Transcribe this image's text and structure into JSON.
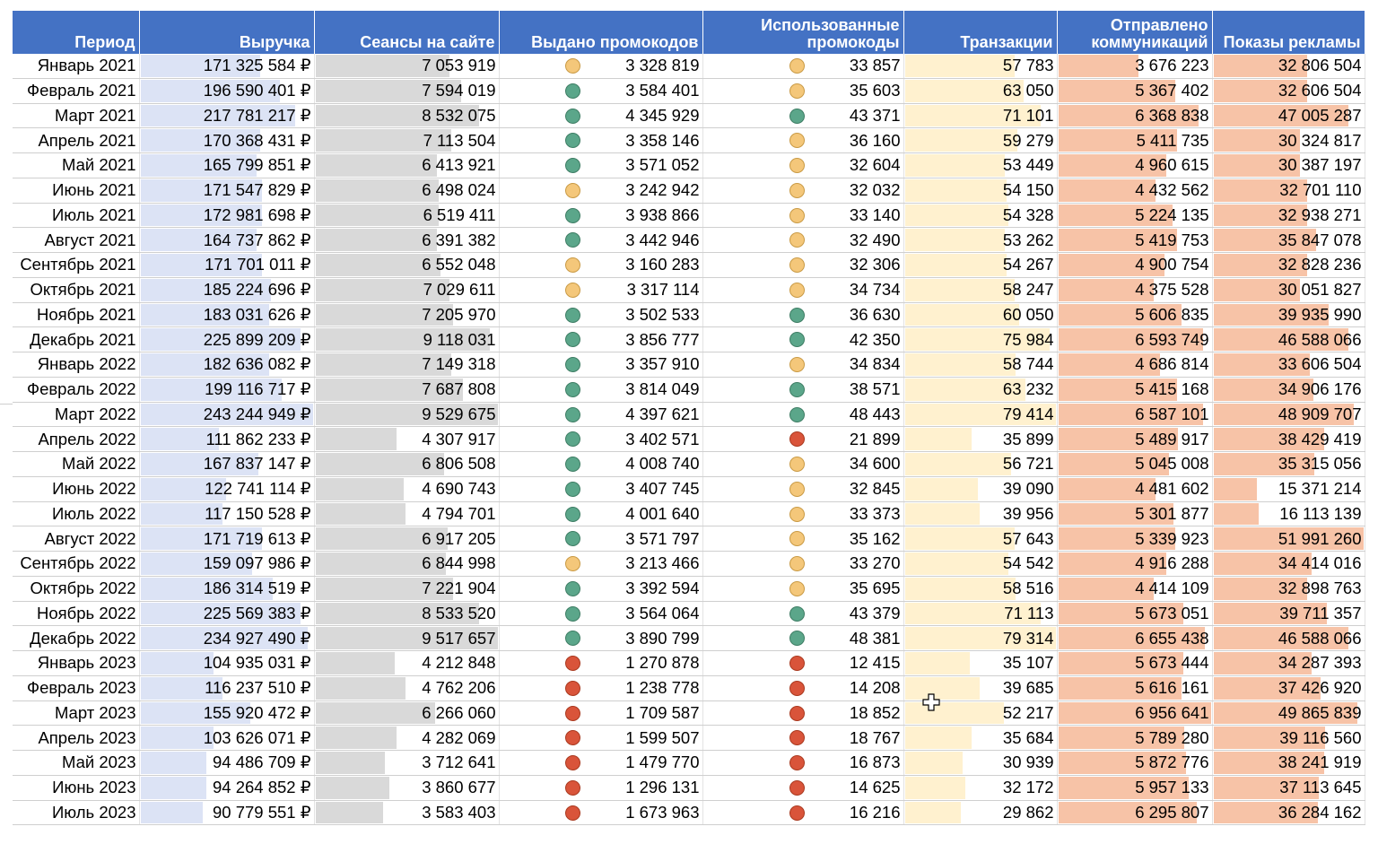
{
  "headers": [
    "Период",
    "Выручка",
    "Сеансы на сайте",
    "Выдано промокодов",
    "Использованные\nпромокоды",
    "Транзакции",
    "Отправлено\nкоммуникаций",
    "Показы рекламы"
  ],
  "colors": {
    "header_bg": "#4472C4",
    "revenue_bar": "#DCE3F5",
    "sessions_bar": "#D9D9D9",
    "transactions_bar": "#FFF1CF",
    "comms_bar": "#F7C3A7",
    "ads_bar": "#F7C3A7",
    "icon_yellow": "#F4C77A",
    "icon_green": "#5BA68A",
    "icon_red": "#D9543A"
  },
  "icon_legend": {
    "y": "yellow-circle-icon",
    "g": "green-circle-icon",
    "r": "red-circle-icon"
  },
  "rows": [
    {
      "period": "Январь 2021",
      "revenue": "171 325 584 ₽",
      "sessions": "7 053 919",
      "promo_icon": "y",
      "promos": "3 328 819",
      "used_icon": "y",
      "used": "33 857",
      "transactions": "57 783",
      "comms": "3 676 223",
      "ads": "32 806 504",
      "rev_fill": 0.7,
      "ses_fill": 0.74,
      "tr_fill": 0.73,
      "com_fill": 0.53,
      "ads_fill": 0.63
    },
    {
      "period": "Февраль 2021",
      "revenue": "196 590 401 ₽",
      "sessions": "7 594 019",
      "promo_icon": "g",
      "promos": "3 584 401",
      "used_icon": "y",
      "used": "35 603",
      "transactions": "63 050",
      "comms": "5 367 402",
      "ads": "32 606 504",
      "rev_fill": 0.81,
      "ses_fill": 0.8,
      "tr_fill": 0.79,
      "com_fill": 0.77,
      "ads_fill": 0.63
    },
    {
      "period": "Март 2021",
      "revenue": "217 781 217 ₽",
      "sessions": "8 532 075",
      "promo_icon": "g",
      "promos": "4 345 929",
      "used_icon": "g",
      "used": "43 371",
      "transactions": "71 101",
      "comms": "6 368 838",
      "ads": "47 005 287",
      "rev_fill": 0.9,
      "ses_fill": 0.9,
      "tr_fill": 0.9,
      "com_fill": 0.92,
      "ads_fill": 0.9
    },
    {
      "period": "Апрель 2021",
      "revenue": "170 368 431 ₽",
      "sessions": "7 113 504",
      "promo_icon": "g",
      "promos": "3 358 146",
      "used_icon": "y",
      "used": "36 160",
      "transactions": "59 279",
      "comms": "5 411 735",
      "ads": "30 324 817",
      "rev_fill": 0.7,
      "ses_fill": 0.75,
      "tr_fill": 0.75,
      "com_fill": 0.78,
      "ads_fill": 0.58
    },
    {
      "period": "Май 2021",
      "revenue": "165 799 851 ₽",
      "sessions": "6 413 921",
      "promo_icon": "g",
      "promos": "3 571 052",
      "used_icon": "y",
      "used": "32 604",
      "transactions": "53 449",
      "comms": "4 960 615",
      "ads": "30 387 197",
      "rev_fill": 0.68,
      "ses_fill": 0.67,
      "tr_fill": 0.67,
      "com_fill": 0.71,
      "ads_fill": 0.58
    },
    {
      "period": "Июнь 2021",
      "revenue": "171 547 829 ₽",
      "sessions": "6 498 024",
      "promo_icon": "y",
      "promos": "3 242 942",
      "used_icon": "y",
      "used": "32 032",
      "transactions": "54 150",
      "comms": "4 432 562",
      "ads": "32 701 110",
      "rev_fill": 0.71,
      "ses_fill": 0.68,
      "tr_fill": 0.68,
      "com_fill": 0.64,
      "ads_fill": 0.63
    },
    {
      "period": "Июль 2021",
      "revenue": "172 981 698 ₽",
      "sessions": "6 519 411",
      "promo_icon": "g",
      "promos": "3 938 866",
      "used_icon": "y",
      "used": "33 140",
      "transactions": "54 328",
      "comms": "5 224 135",
      "ads": "32 938 271",
      "rev_fill": 0.71,
      "ses_fill": 0.68,
      "tr_fill": 0.69,
      "com_fill": 0.75,
      "ads_fill": 0.63
    },
    {
      "period": "Август 2021",
      "revenue": "164 737 862 ₽",
      "sessions": "6 391 382",
      "promo_icon": "g",
      "promos": "3 442 946",
      "used_icon": "y",
      "used": "32 490",
      "transactions": "53 262",
      "comms": "5 419 753",
      "ads": "35 847 078",
      "rev_fill": 0.68,
      "ses_fill": 0.67,
      "tr_fill": 0.67,
      "com_fill": 0.78,
      "ads_fill": 0.69
    },
    {
      "period": "Сентябрь 2021",
      "revenue": "171 701 011 ₽",
      "sessions": "6 552 048",
      "promo_icon": "y",
      "promos": "3 160 283",
      "used_icon": "y",
      "used": "32 306",
      "transactions": "54 267",
      "comms": "4 900 754",
      "ads": "32 828 236",
      "rev_fill": 0.71,
      "ses_fill": 0.69,
      "tr_fill": 0.68,
      "com_fill": 0.7,
      "ads_fill": 0.63
    },
    {
      "period": "Октябрь 2021",
      "revenue": "185 224 696 ₽",
      "sessions": "7 029 611",
      "promo_icon": "y",
      "promos": "3 317 114",
      "used_icon": "y",
      "used": "34 734",
      "transactions": "58 247",
      "comms": "4 375 528",
      "ads": "30 051 827",
      "rev_fill": 0.76,
      "ses_fill": 0.74,
      "tr_fill": 0.73,
      "com_fill": 0.63,
      "ads_fill": 0.58
    },
    {
      "period": "Ноябрь 2021",
      "revenue": "183 031 626 ₽",
      "sessions": "7 205 970",
      "promo_icon": "g",
      "promos": "3 502 533",
      "used_icon": "g",
      "used": "36 630",
      "transactions": "60 050",
      "comms": "5 606 835",
      "ads": "39 935 990",
      "rev_fill": 0.75,
      "ses_fill": 0.76,
      "tr_fill": 0.76,
      "com_fill": 0.81,
      "ads_fill": 0.77
    },
    {
      "period": "Декабрь 2021",
      "revenue": "225 899 209 ₽",
      "sessions": "9 118 031",
      "promo_icon": "g",
      "promos": "3 856 777",
      "used_icon": "g",
      "used": "42 350",
      "transactions": "75 984",
      "comms": "6 593 749",
      "ads": "46 588 066",
      "rev_fill": 0.93,
      "ses_fill": 0.96,
      "tr_fill": 0.96,
      "com_fill": 0.95,
      "ads_fill": 0.9
    },
    {
      "period": "Январь 2022",
      "revenue": "182 636 082 ₽",
      "sessions": "7 149 318",
      "promo_icon": "g",
      "promos": "3 357 910",
      "used_icon": "y",
      "used": "34 834",
      "transactions": "58 744",
      "comms": "4 686 814",
      "ads": "33 606 504",
      "rev_fill": 0.75,
      "ses_fill": 0.75,
      "tr_fill": 0.74,
      "com_fill": 0.67,
      "ads_fill": 0.65
    },
    {
      "period": "Февраль 2022",
      "revenue": "199 116 717 ₽",
      "sessions": "7 687 808",
      "promo_icon": "g",
      "promos": "3 814 049",
      "used_icon": "g",
      "used": "38 571",
      "transactions": "63 232",
      "comms": "5 415 168",
      "ads": "34 906 176",
      "rev_fill": 0.82,
      "ses_fill": 0.81,
      "tr_fill": 0.8,
      "com_fill": 0.78,
      "ads_fill": 0.67
    },
    {
      "period": "Март 2022",
      "revenue": "243 244 949 ₽",
      "sessions": "9 529 675",
      "promo_icon": "g",
      "promos": "4 397 621",
      "used_icon": "g",
      "used": "48 443",
      "transactions": "79 414",
      "comms": "6 587 101",
      "ads": "48 909 707",
      "rev_fill": 1.0,
      "ses_fill": 1.0,
      "tr_fill": 1.0,
      "com_fill": 0.95,
      "ads_fill": 0.94
    },
    {
      "period": "Апрель 2022",
      "revenue": "111 862 233 ₽",
      "sessions": "4 307 917",
      "promo_icon": "g",
      "promos": "3 402 571",
      "used_icon": "r",
      "used": "21 899",
      "transactions": "35 899",
      "comms": "5 489 917",
      "ads": "38 429 419",
      "rev_fill": 0.46,
      "ses_fill": 0.45,
      "tr_fill": 0.45,
      "com_fill": 0.79,
      "ads_fill": 0.74
    },
    {
      "period": "Май 2022",
      "revenue": "167 837 147 ₽",
      "sessions": "6 806 508",
      "promo_icon": "g",
      "promos": "4 008 740",
      "used_icon": "y",
      "used": "34 600",
      "transactions": "56 721",
      "comms": "5 045 008",
      "ads": "35 315 056",
      "rev_fill": 0.69,
      "ses_fill": 0.71,
      "tr_fill": 0.71,
      "com_fill": 0.73,
      "ads_fill": 0.68
    },
    {
      "period": "Июнь 2022",
      "revenue": "122 741 114 ₽",
      "sessions": "4 690 743",
      "promo_icon": "g",
      "promos": "3 407 745",
      "used_icon": "y",
      "used": "32 845",
      "transactions": "39 090",
      "comms": "4 481 602",
      "ads": "15 371 214",
      "rev_fill": 0.5,
      "ses_fill": 0.49,
      "tr_fill": 0.49,
      "com_fill": 0.64,
      "ads_fill": 0.3
    },
    {
      "period": "Июль 2022",
      "revenue": "117 150 528 ₽",
      "sessions": "4 794 701",
      "promo_icon": "g",
      "promos": "4 001 640",
      "used_icon": "y",
      "used": "33 373",
      "transactions": "39 956",
      "comms": "5 301 877",
      "ads": "16 113 139",
      "rev_fill": 0.48,
      "ses_fill": 0.5,
      "tr_fill": 0.5,
      "com_fill": 0.76,
      "ads_fill": 0.31
    },
    {
      "period": "Август 2022",
      "revenue": "171 719 613 ₽",
      "sessions": "6 917 205",
      "promo_icon": "g",
      "promos": "3 571 797",
      "used_icon": "y",
      "used": "35 162",
      "transactions": "57 643",
      "comms": "5 339 923",
      "ads": "51 991 260",
      "rev_fill": 0.71,
      "ses_fill": 0.73,
      "tr_fill": 0.73,
      "com_fill": 0.77,
      "ads_fill": 1.0
    },
    {
      "period": "Сентябрь 2022",
      "revenue": "159 097 986 ₽",
      "sessions": "6 844 998",
      "promo_icon": "y",
      "promos": "3 213 466",
      "used_icon": "y",
      "used": "33 270",
      "transactions": "54 542",
      "comms": "4 916 288",
      "ads": "34 414 016",
      "rev_fill": 0.65,
      "ses_fill": 0.72,
      "tr_fill": 0.69,
      "com_fill": 0.71,
      "ads_fill": 0.66
    },
    {
      "period": "Октябрь 2022",
      "revenue": "186 314 519 ₽",
      "sessions": "7 221 904",
      "promo_icon": "g",
      "promos": "3 392 594",
      "used_icon": "y",
      "used": "35 695",
      "transactions": "58 516",
      "comms": "4 414 109",
      "ads": "32 898 763",
      "rev_fill": 0.77,
      "ses_fill": 0.76,
      "tr_fill": 0.74,
      "com_fill": 0.63,
      "ads_fill": 0.63
    },
    {
      "period": "Ноябрь 2022",
      "revenue": "225 569 383 ₽",
      "sessions": "8 533 520",
      "promo_icon": "g",
      "promos": "3 564 064",
      "used_icon": "g",
      "used": "43 379",
      "transactions": "71 113",
      "comms": "5 673 051",
      "ads": "39 711 357",
      "rev_fill": 0.93,
      "ses_fill": 0.9,
      "tr_fill": 0.9,
      "com_fill": 0.82,
      "ads_fill": 0.76
    },
    {
      "period": "Декабрь 2022",
      "revenue": "234 927 490 ₽",
      "sessions": "9 517 657",
      "promo_icon": "g",
      "promos": "3 890 799",
      "used_icon": "g",
      "used": "48 381",
      "transactions": "79 314",
      "comms": "6 655 438",
      "ads": "46 588 066",
      "rev_fill": 0.97,
      "ses_fill": 1.0,
      "tr_fill": 1.0,
      "com_fill": 0.96,
      "ads_fill": 0.9
    },
    {
      "period": "Январь 2023",
      "revenue": "104 935 031 ₽",
      "sessions": "4 212 848",
      "promo_icon": "r",
      "promos": "1 270 878",
      "used_icon": "r",
      "used": "12 415",
      "transactions": "35 107",
      "comms": "5 673 444",
      "ads": "34 287 393",
      "rev_fill": 0.43,
      "ses_fill": 0.44,
      "tr_fill": 0.44,
      "com_fill": 0.82,
      "ads_fill": 0.66
    },
    {
      "period": "Февраль 2023",
      "revenue": "116 237 510 ₽",
      "sessions": "4 762 206",
      "promo_icon": "r",
      "promos": "1 238 778",
      "used_icon": "r",
      "used": "14 208",
      "transactions": "39 685",
      "comms": "5 616 161",
      "ads": "37 426 920",
      "rev_fill": 0.48,
      "ses_fill": 0.5,
      "tr_fill": 0.5,
      "com_fill": 0.81,
      "ads_fill": 0.72
    },
    {
      "period": "Март 2023",
      "revenue": "155 920 472 ₽",
      "sessions": "6 266 060",
      "promo_icon": "r",
      "promos": "1 709 587",
      "used_icon": "r",
      "used": "18 852",
      "transactions": "52 217",
      "comms": "6 956 641",
      "ads": "49 865 839",
      "rev_fill": 0.64,
      "ses_fill": 0.66,
      "tr_fill": 0.66,
      "com_fill": 1.0,
      "ads_fill": 0.96
    },
    {
      "period": "Апрель 2023",
      "revenue": "103 626 071 ₽",
      "sessions": "4 282 069",
      "promo_icon": "r",
      "promos": "1 599 507",
      "used_icon": "r",
      "used": "18 767",
      "transactions": "35 684",
      "comms": "5 789 280",
      "ads": "39 116 560",
      "rev_fill": 0.43,
      "ses_fill": 0.45,
      "tr_fill": 0.45,
      "com_fill": 0.83,
      "ads_fill": 0.75
    },
    {
      "period": "Май 2023",
      "revenue": "94 486 709 ₽",
      "sessions": "3 712 641",
      "promo_icon": "r",
      "promos": "1 479 770",
      "used_icon": "r",
      "used": "16 873",
      "transactions": "30 939",
      "comms": "5 872 776",
      "ads": "38 241 919",
      "rev_fill": 0.39,
      "ses_fill": 0.39,
      "tr_fill": 0.39,
      "com_fill": 0.84,
      "ads_fill": 0.74
    },
    {
      "period": "Июнь 2023",
      "revenue": "94 264 852 ₽",
      "sessions": "3 860 677",
      "promo_icon": "r",
      "promos": "1 296 131",
      "used_icon": "r",
      "used": "14 625",
      "transactions": "32 172",
      "comms": "5 957 133",
      "ads": "37 113 645",
      "rev_fill": 0.39,
      "ses_fill": 0.41,
      "tr_fill": 0.41,
      "com_fill": 0.86,
      "ads_fill": 0.71
    },
    {
      "period": "Июль 2023",
      "revenue": "90 779 551 ₽",
      "sessions": "3 583 403",
      "promo_icon": "r",
      "promos": "1 673 963",
      "used_icon": "r",
      "used": "16 216",
      "transactions": "29 862",
      "comms": "6 295 807",
      "ads": "36 284 162",
      "rev_fill": 0.37,
      "ses_fill": 0.38,
      "tr_fill": 0.38,
      "com_fill": 0.91,
      "ads_fill": 0.7
    }
  ]
}
